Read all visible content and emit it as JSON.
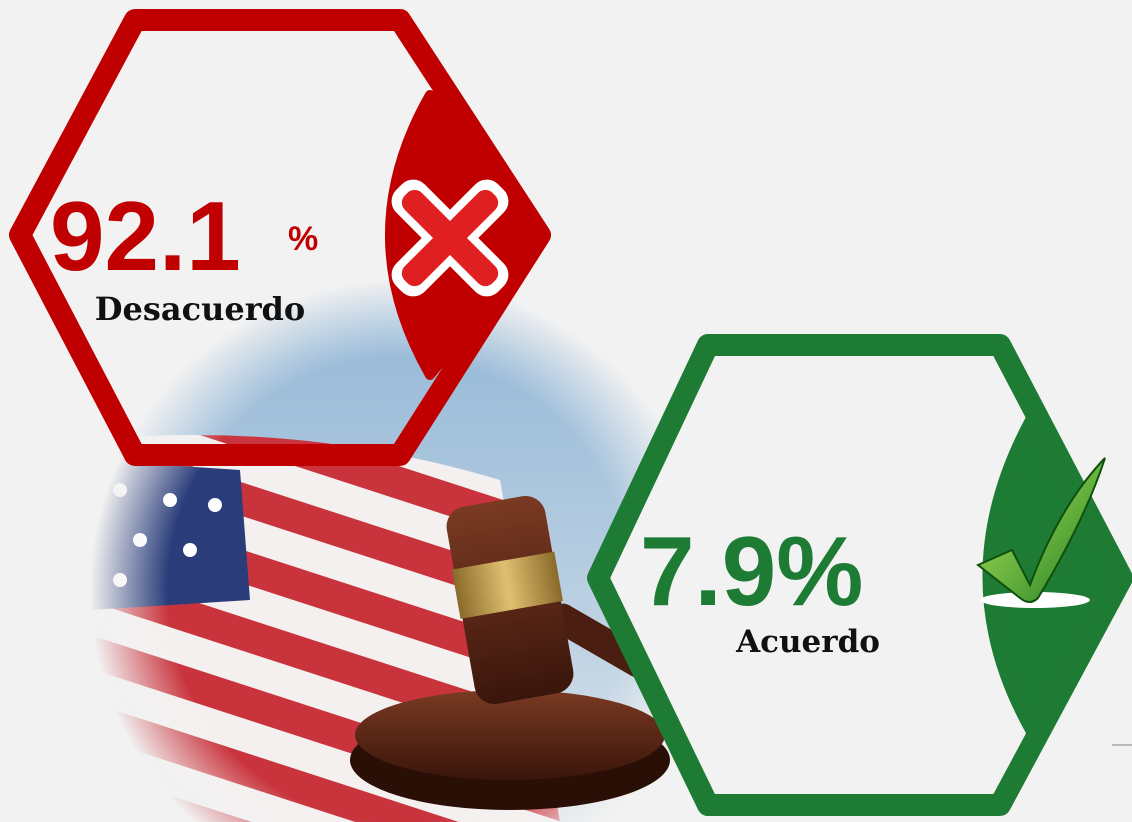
{
  "items": [
    {
      "value": 92.1,
      "unit": "%",
      "label": "Desacuerdo"
    },
    {
      "value": 7.9,
      "unit": "%",
      "label": "Acuerdo"
    }
  ]
}
